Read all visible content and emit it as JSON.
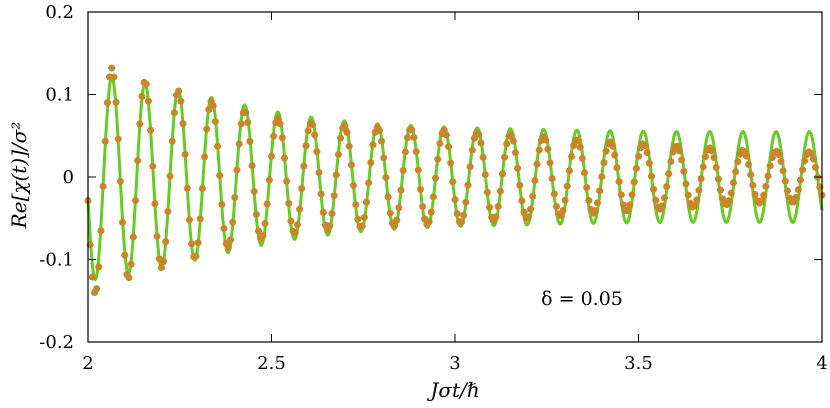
{
  "chart_data": {
    "type": "line",
    "title": "",
    "xlabel": "Jσt/ℏ",
    "ylabel": "Re[χ(t)]/σ²",
    "xlim": [
      2,
      4
    ],
    "ylim": [
      -0.2,
      0.2
    ],
    "x_ticks": [
      2,
      2.5,
      3,
      3.5,
      4
    ],
    "x_tick_labels": [
      "2",
      "2.5",
      "3",
      "3.5",
      "4"
    ],
    "y_ticks": [
      -0.2,
      -0.1,
      0,
      0.1,
      0.2
    ],
    "y_tick_labels": [
      "-0.2",
      "-0.1",
      "0",
      "0.1",
      "0.2"
    ],
    "grid": false,
    "legend": "none",
    "annotation": "δ = 0.05",
    "series": [
      {
        "kind": "line",
        "color": "#66cc22",
        "period": 0.0905,
        "x": [
          2.0,
          2.025,
          2.05,
          2.075,
          2.1,
          2.125,
          2.15,
          2.175,
          2.2,
          2.25,
          2.3,
          2.35,
          2.4,
          2.45,
          2.5,
          2.6,
          2.7,
          2.8,
          2.9,
          3.0,
          3.2,
          3.4,
          3.6,
          3.8,
          4.0
        ],
        "envelope": [
          0.125,
          0.124,
          0.122,
          0.12,
          0.118,
          0.116,
          0.114,
          0.112,
          0.11,
          0.105,
          0.1,
          0.095,
          0.09,
          0.085,
          0.08,
          0.073,
          0.068,
          0.064,
          0.062,
          0.06,
          0.058,
          0.056,
          0.055,
          0.055,
          0.055
        ]
      },
      {
        "kind": "markers",
        "color": "#c8862a",
        "marker": "asterisk",
        "period": 0.0905,
        "x": [
          2.0,
          2.025,
          2.05,
          2.075,
          2.1,
          2.125,
          2.15,
          2.175,
          2.2,
          2.25,
          2.3,
          2.35,
          2.4,
          2.45,
          2.5,
          2.6,
          2.7,
          2.8,
          2.9,
          3.0,
          3.2,
          3.4,
          3.6,
          3.8,
          4.0
        ],
        "envelope": [
          0.145,
          0.14,
          0.135,
          0.13,
          0.125,
          0.12,
          0.117,
          0.113,
          0.11,
          0.104,
          0.097,
          0.09,
          0.083,
          0.077,
          0.072,
          0.066,
          0.062,
          0.06,
          0.058,
          0.056,
          0.05,
          0.043,
          0.038,
          0.032,
          0.03
        ]
      }
    ]
  }
}
